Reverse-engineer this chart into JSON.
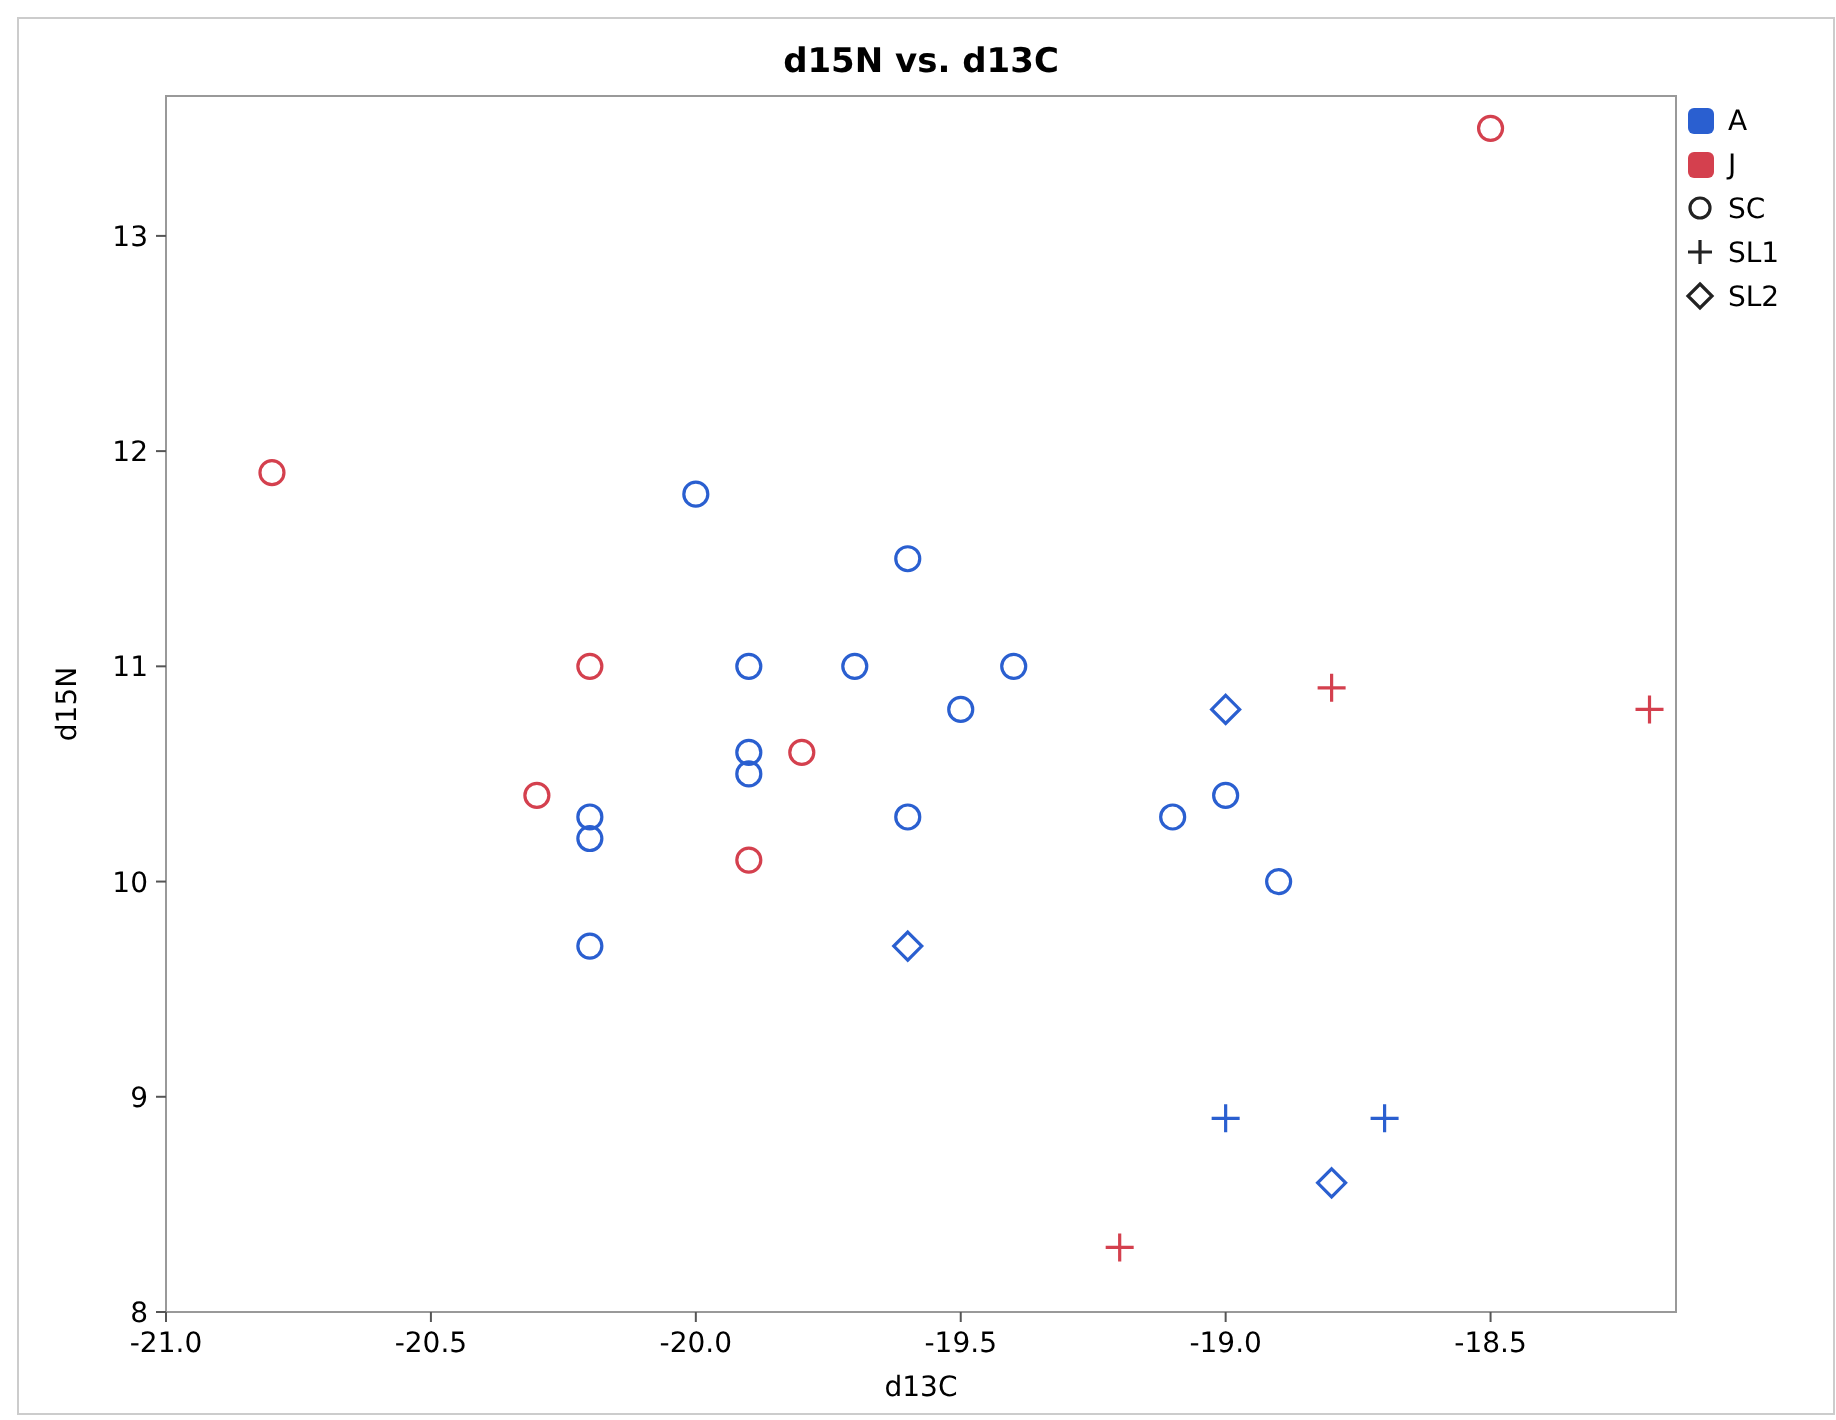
{
  "chart_data": {
    "type": "scatter",
    "title": "d15N vs. d13C",
    "xlabel": "d13C",
    "ylabel": "d15N",
    "xlim": [
      -21,
      -18.15
    ],
    "xticks": [
      {
        "value": -21,
        "label": "-21.0"
      },
      {
        "value": -20.5,
        "label": "-20.5"
      },
      {
        "value": -20,
        "label": "-20.0"
      },
      {
        "value": -19.5,
        "label": "-19.5"
      },
      {
        "value": -19,
        "label": "-19.0"
      },
      {
        "value": -18.5,
        "label": "-18.5"
      }
    ],
    "ylim": [
      8,
      13.65
    ],
    "yticks": [
      8,
      9,
      10,
      11,
      12,
      13
    ],
    "grid": false,
    "legend": "top right",
    "annotations": [
      "SC",
      "SL1",
      "SL2"
    ],
    "series": [
      {
        "name": "A",
        "color": "#2a5fd0",
        "marker": "circle",
        "x": [
          -20.0,
          -19.6,
          -19.9,
          -19.7,
          -19.4,
          -19.5,
          -19.9,
          -19.9,
          -20.2,
          -20.2,
          -20.2,
          -19.6,
          -19.1,
          -19.0,
          -18.9
        ],
        "values": [
          11.8,
          11.5,
          11.0,
          11.0,
          11.0,
          10.8,
          10.6,
          10.5,
          10.3,
          10.2,
          9.7,
          10.3,
          10.3,
          10.4,
          10.0
        ]
      },
      {
        "color": "#2a5fd0",
        "marker": "cross",
        "x": [
          -19.0,
          -18.7
        ],
        "values": [
          8.9,
          8.9
        ]
      },
      {
        "color": "#2a5fd0",
        "marker": "diamond",
        "x": [
          -19.0,
          -19.6,
          -18.8
        ],
        "values": [
          10.8,
          9.7,
          8.6
        ]
      },
      {
        "name": "J",
        "color": "#d4404e",
        "marker": "circle",
        "x": [
          -18.5,
          -20.8,
          -20.2,
          -20.3,
          -19.8,
          -19.9
        ],
        "values": [
          13.5,
          11.9,
          11.0,
          10.4,
          10.6,
          10.1
        ]
      },
      {
        "color": "#d4404e",
        "marker": "cross",
        "x": [
          -18.8,
          -18.2,
          -19.2
        ],
        "values": [
          10.9,
          10.8,
          8.3
        ]
      }
    ]
  }
}
